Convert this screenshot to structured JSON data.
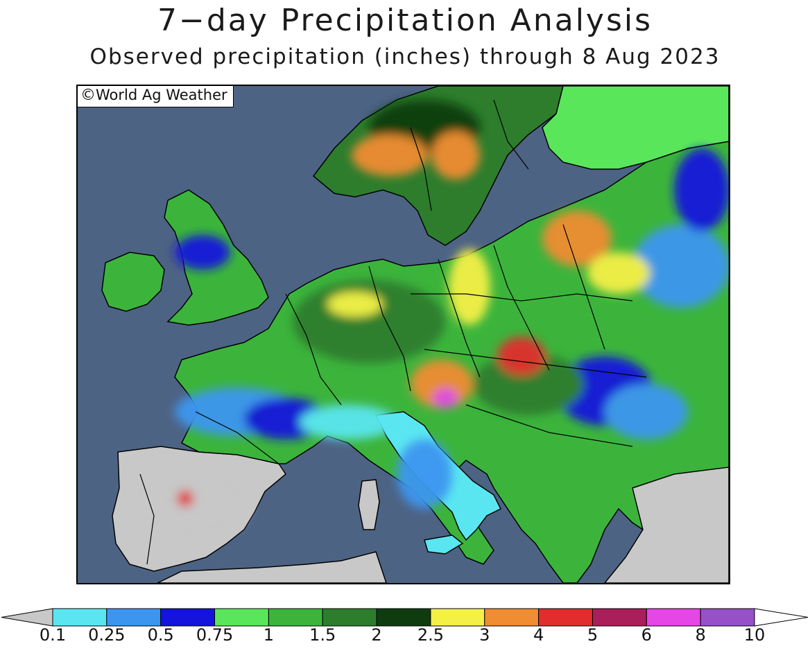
{
  "title": "7−day Precipitation Analysis",
  "subtitle": "Observed precipitation (inches) through 8 Aug 2023",
  "credit": {
    "symbol": "©",
    "text": "World Ag Weather"
  },
  "colors": {
    "ocean": "#4d6384",
    "dry": "#c8c8c8",
    "border": "#000000"
  },
  "legend": {
    "bins": [
      {
        "label": "0.1",
        "color": "#c8c8c8"
      },
      {
        "label": "0.25",
        "color": "#5ae6f0"
      },
      {
        "label": "0.5",
        "color": "#3c96f0"
      },
      {
        "label": "0.75",
        "color": "#1414dc"
      },
      {
        "label": "1",
        "color": "#5ae65a"
      },
      {
        "label": "1.5",
        "color": "#3cb43c"
      },
      {
        "label": "2",
        "color": "#2d7d2d"
      },
      {
        "label": "2.5",
        "color": "#0f3c0f"
      },
      {
        "label": "3",
        "color": "#f5f046"
      },
      {
        "label": "4",
        "color": "#f08c32"
      },
      {
        "label": "5",
        "color": "#e12d2d"
      },
      {
        "label": "6",
        "color": "#aa1e5a"
      },
      {
        "label": "8",
        "color": "#e646e6"
      },
      {
        "label": "10",
        "color": "#9650c8"
      }
    ],
    "over_color": "#ffffff"
  }
}
